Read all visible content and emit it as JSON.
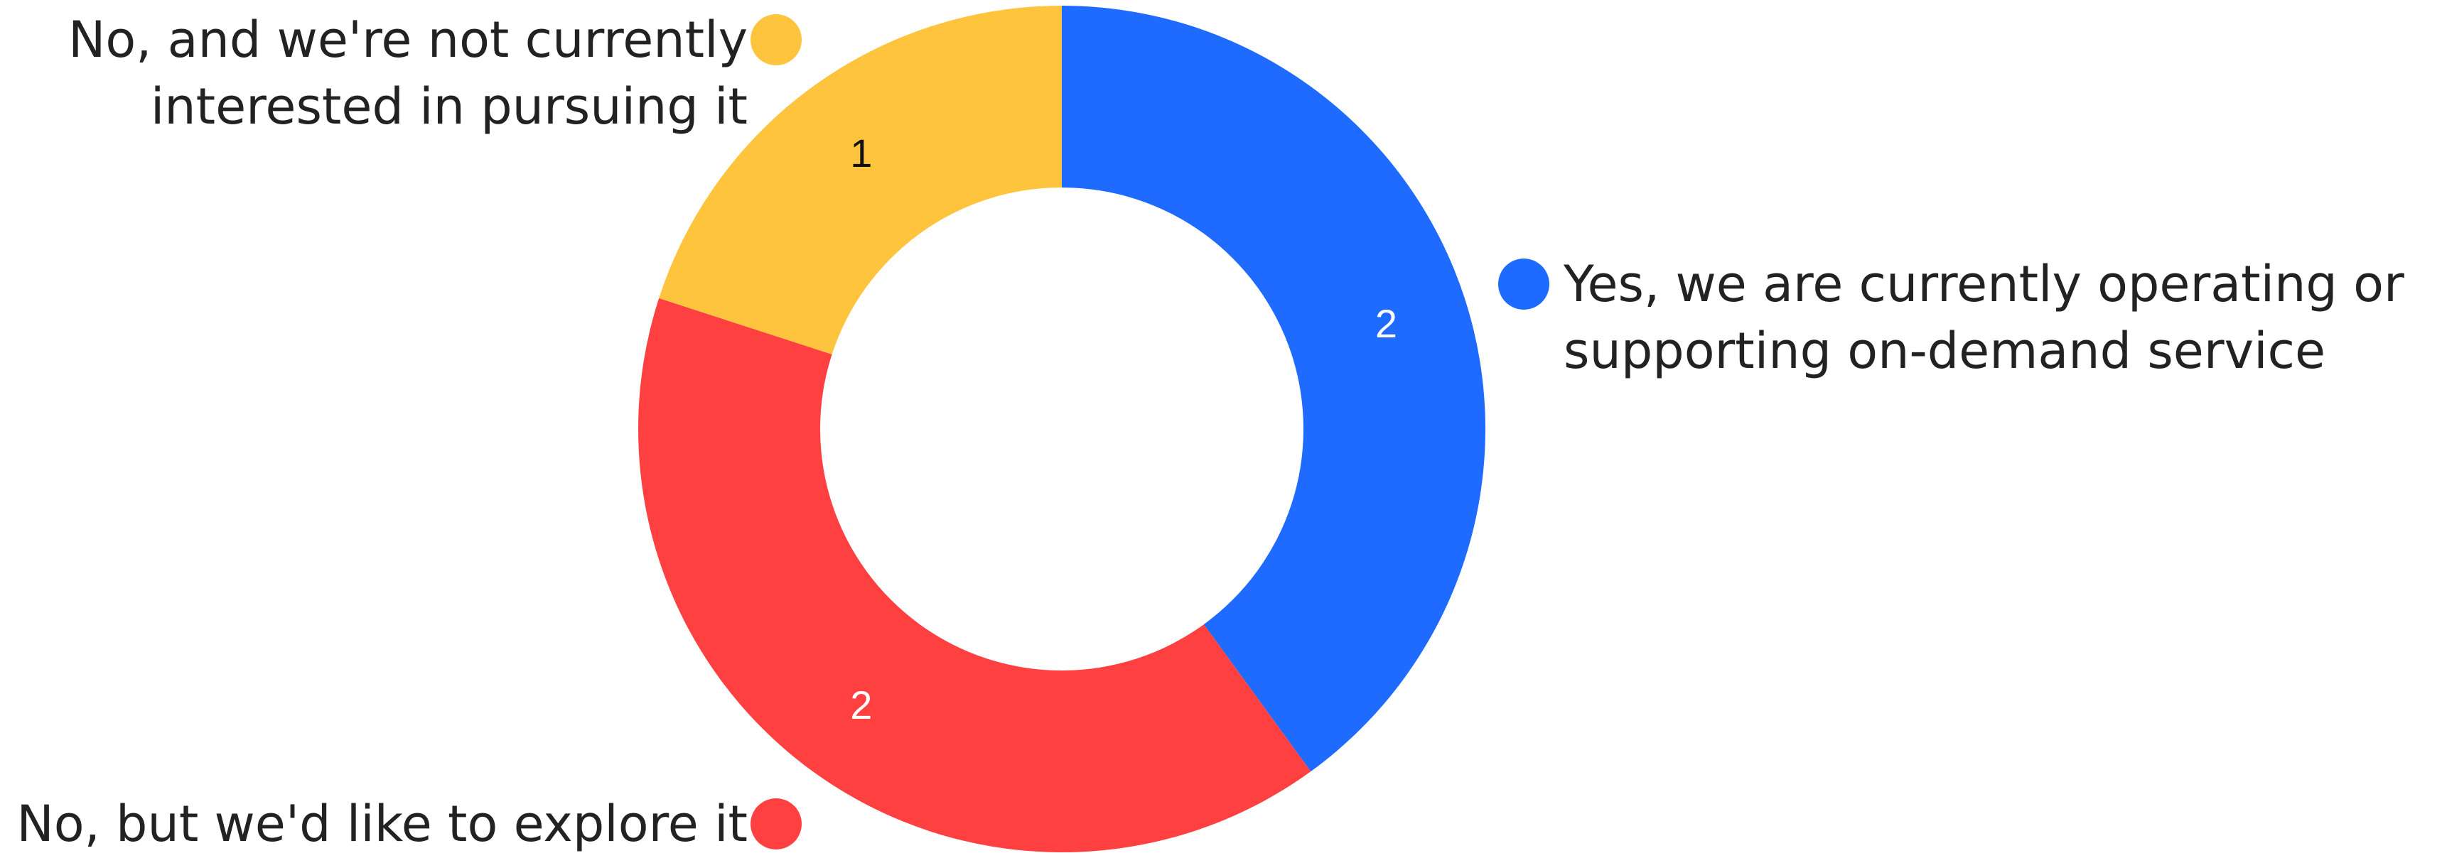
{
  "chart_data": {
    "type": "pie",
    "variant": "donut",
    "slices": [
      {
        "label": "Yes, we are currently operating or supporting on-demand service",
        "label_lines": [
          "Yes, we are currently operating or",
          "supporting on-demand service"
        ],
        "value": 2,
        "color": "#1f6bff",
        "value_text_color": "#ffffff"
      },
      {
        "label": "No, but we'd like to explore it",
        "label_lines": [
          "No, but we'd like to explore it"
        ],
        "value": 2,
        "color": "#ff4040",
        "value_text_color": "#ffffff"
      },
      {
        "label": "No, and we're not currently interested in pursuing it",
        "label_lines": [
          "No, and we're not currently",
          "interested in pursuing it"
        ],
        "value": 1,
        "color": "#ffc43d",
        "value_text_color": "#111111"
      }
    ],
    "title": "",
    "legend": "outside-labels"
  }
}
